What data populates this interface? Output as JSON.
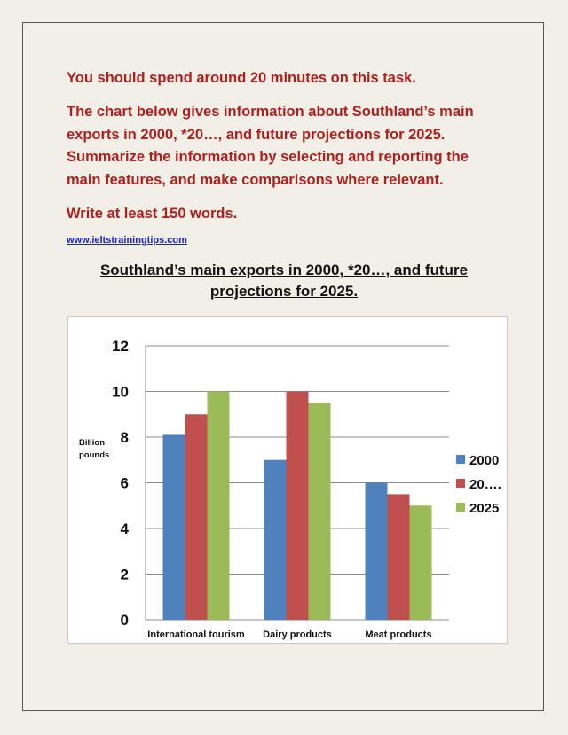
{
  "task": {
    "line1": "You should spend around 20 minutes on this task.",
    "line2": "The chart below gives information about Southland’s main exports in 2000, *20…, and future projections for 2025. Summarize the information by selecting and reporting the main features, and make comparisons where relevant.",
    "line3": "Write at least 150 words."
  },
  "website": "www.ieltstrainingtips.com",
  "heading": {
    "line1": "Southland’s main exports in 2000, *20…, and future",
    "line2": "projections for 2025."
  },
  "chart_data": {
    "type": "bar",
    "title": "Southland’s main exports in 2000, *20…, and future projections for 2025.",
    "xlabel": "",
    "ylabel": "Billion pounds",
    "ylabel_lines": [
      "Billion",
      "pounds"
    ],
    "ylim": [
      0,
      12
    ],
    "yticks": [
      0,
      2,
      4,
      6,
      8,
      10,
      12
    ],
    "grid": true,
    "legend_position": "right",
    "categories": [
      "International tourism",
      "Dairy products",
      "Meat products"
    ],
    "series": [
      {
        "name": "2000",
        "color": "#4f81bd",
        "values": [
          8.1,
          7,
          6
        ]
      },
      {
        "name": "20….",
        "color": "#c0504d",
        "values": [
          9,
          10,
          5.5
        ]
      },
      {
        "name": "2025",
        "color": "#9bbb59",
        "values": [
          10,
          9.5,
          5
        ]
      }
    ]
  }
}
